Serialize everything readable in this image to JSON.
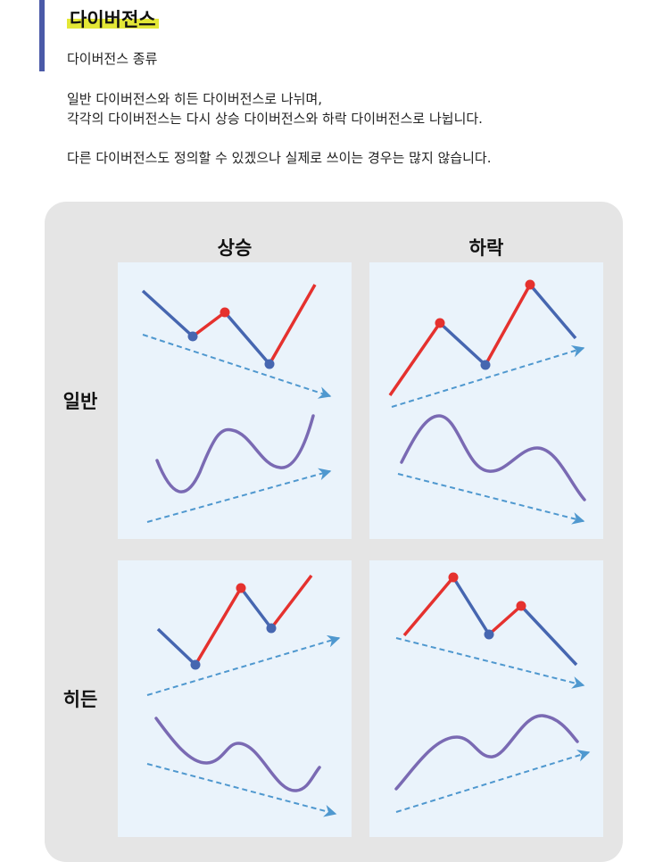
{
  "header": {
    "title": "다이버전스",
    "subtitle": "다이버전스 종류"
  },
  "body": {
    "lines": [
      "일반 다이버전스와 히든 다이버전스로 나뉘며,",
      "각각의 다이버전스는 다시 상승 다이버전스와 하락 다이버전스로 나뉩니다.",
      "다른 다이버전스도 정의할 수 있겠으나 실제로 쓰이는 경우는 많지 않습니다."
    ]
  },
  "diagram": {
    "columns": [
      "상승",
      "하락"
    ],
    "rows": [
      "일반",
      "히든"
    ],
    "colors": {
      "panel_bg": "#e5e5e5",
      "cell_bg": "#eaf3fb",
      "price_down_line": "#4666b0",
      "price_up_line": "#e5312e",
      "low_point": "#4666b0",
      "high_point": "#e5312e",
      "indicator_wave": "#7a6ab3",
      "trend_arrow": "#4f98cf"
    },
    "icons": {
      "trend_arrow": "dashed-arrow-icon",
      "point": "dot-icon"
    }
  }
}
